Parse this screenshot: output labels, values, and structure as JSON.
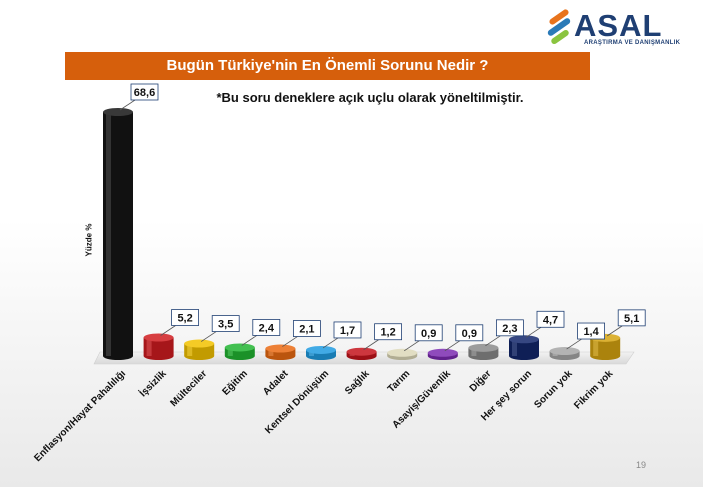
{
  "logo": {
    "name": "ASAL",
    "subtitle": "ARAŞTIRMA VE DANIŞMANLIK"
  },
  "title": "Bugün Türkiye'nin En Önemli Sorunu Nedir ?",
  "note": "*Bu soru deneklere açık uçlu olarak yöneltilmiştir.",
  "page_number": "19",
  "chart_data": {
    "type": "bar",
    "title": "Bugün Türkiye'nin En Önemli Sorunu Nedir ?",
    "xlabel": "",
    "ylabel": "Yüzde %",
    "ylim": [
      0,
      70
    ],
    "grid": false,
    "categories": [
      "Enflasyon/Hayat Pahalılığı",
      "İşsizlik",
      "Mülteciler",
      "Eğitim",
      "Adalet",
      "Kentsel Dönüşüm",
      "Sağlık",
      "Tarım",
      "Asayiş/Güvenlik",
      "Diğer",
      "Her şey sorun",
      "Sorun yok",
      "Fikrim yok"
    ],
    "values": [
      68.6,
      5.2,
      3.5,
      2.4,
      2.1,
      1.7,
      1.2,
      0.9,
      0.9,
      2.3,
      4.7,
      1.4,
      5.1
    ],
    "value_labels": [
      "68,6",
      "5,2",
      "3,5",
      "2,4",
      "2,1",
      "1,7",
      "1,2",
      "0,9",
      "0,9",
      "2,3",
      "4,7",
      "1,4",
      "5,1"
    ],
    "colors": [
      "#151515",
      "#d01c20",
      "#f2c200",
      "#22b532",
      "#ea6a12",
      "#1f9be0",
      "#c4141c",
      "#ddd8b8",
      "#7b2bb0",
      "#8a8a8a",
      "#13276c",
      "#a6a6a6",
      "#d6a410"
    ]
  }
}
